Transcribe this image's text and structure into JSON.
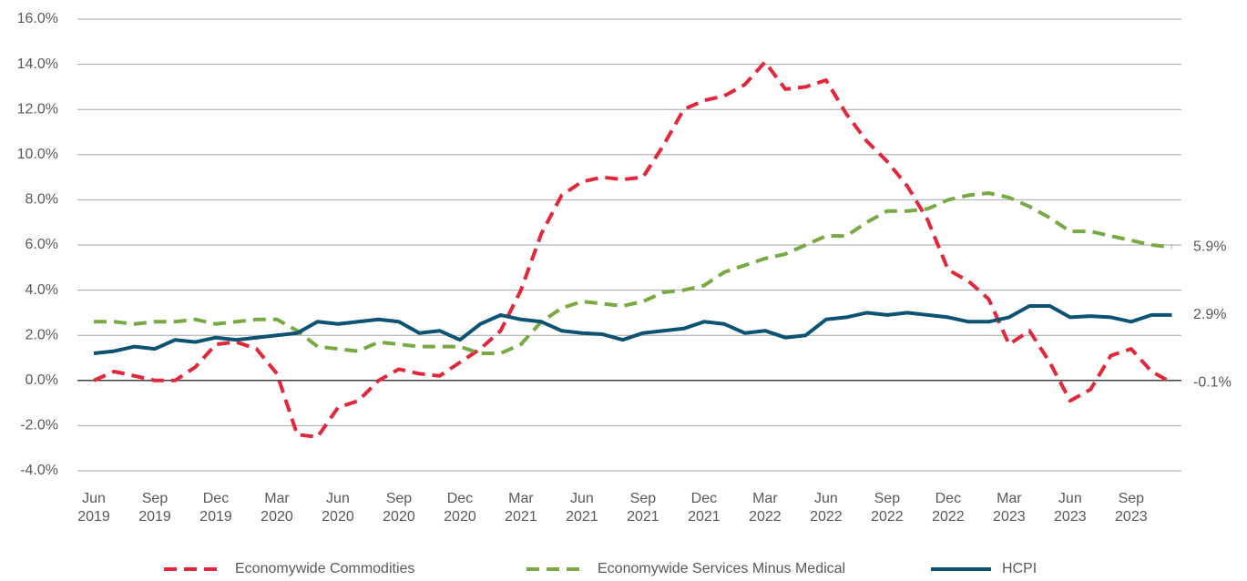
{
  "chart_data": {
    "type": "line",
    "categories": [
      "Jun 2019",
      null,
      null,
      "Sep 2019",
      null,
      null,
      "Dec 2019",
      null,
      null,
      "Mar 2020",
      null,
      null,
      "Jun 2020",
      null,
      null,
      "Sep 2020",
      null,
      null,
      "Dec 2020",
      null,
      null,
      "Mar 2021",
      null,
      null,
      "Jun 2021",
      null,
      null,
      "Sep 2021",
      null,
      null,
      "Dec 2021",
      null,
      null,
      "Mar 2022",
      null,
      null,
      "Jun 2022",
      null,
      null,
      "Sep 2022",
      null,
      null,
      "Dec 2022",
      null,
      null,
      "Mar 2023",
      null,
      null,
      "Jun 2023",
      null,
      null,
      "Sep 2023",
      null,
      null
    ],
    "series": [
      {
        "name": "Economywide Commodities",
        "color": "#e3263a",
        "style": "dashed",
        "end_label": "-0.1%",
        "values": [
          0.0,
          0.4,
          0.2,
          0.0,
          0.0,
          0.6,
          1.6,
          1.7,
          1.4,
          0.3,
          -2.4,
          -2.5,
          -1.2,
          -0.9,
          0.0,
          0.5,
          0.3,
          0.2,
          0.8,
          1.4,
          2.2,
          4.0,
          6.5,
          8.2,
          8.8,
          9.0,
          8.9,
          9.0,
          10.4,
          12.0,
          12.4,
          12.6,
          13.1,
          14.1,
          12.9,
          13.0,
          13.3,
          11.8,
          10.6,
          9.7,
          8.6,
          7.1,
          4.9,
          4.4,
          3.6,
          1.6,
          2.2,
          0.8,
          -0.9,
          -0.4,
          1.1,
          1.4,
          0.4,
          -0.1
        ]
      },
      {
        "name": "Economywide Services Minus Medical",
        "color": "#78a942",
        "style": "dashed",
        "end_label": "5.9%",
        "values": [
          2.6,
          2.6,
          2.5,
          2.6,
          2.6,
          2.7,
          2.5,
          2.6,
          2.7,
          2.7,
          2.2,
          1.5,
          1.4,
          1.3,
          1.7,
          1.6,
          1.5,
          1.5,
          1.5,
          1.2,
          1.2,
          1.6,
          2.6,
          3.2,
          3.5,
          3.4,
          3.3,
          3.5,
          3.9,
          4.0,
          4.2,
          4.8,
          5.1,
          5.4,
          5.6,
          6.0,
          6.4,
          6.4,
          7.0,
          7.5,
          7.5,
          7.6,
          8.0,
          8.2,
          8.3,
          8.1,
          7.7,
          7.2,
          6.6,
          6.6,
          6.4,
          6.2,
          6.0,
          5.9
        ]
      },
      {
        "name": "HCPI",
        "color": "#0c5273",
        "style": "solid",
        "end_label": "2.9%",
        "values": [
          1.2,
          1.3,
          1.5,
          1.4,
          1.8,
          1.7,
          1.9,
          1.8,
          1.9,
          2.0,
          2.1,
          2.6,
          2.5,
          2.6,
          2.7,
          2.6,
          2.1,
          2.2,
          1.8,
          2.5,
          2.9,
          2.7,
          2.6,
          2.2,
          2.1,
          2.05,
          1.8,
          2.1,
          2.2,
          2.3,
          2.6,
          2.5,
          2.1,
          2.2,
          1.9,
          2.0,
          2.7,
          2.8,
          3.0,
          2.9,
          3.0,
          2.9,
          2.8,
          2.6,
          2.6,
          2.8,
          3.3,
          3.3,
          2.8,
          2.85,
          2.8,
          2.6,
          2.9,
          2.9
        ]
      }
    ],
    "ylim": [
      -4,
      16
    ],
    "yticks": [
      {
        "value": -4,
        "label": "-4.0%"
      },
      {
        "value": -2,
        "label": "-2.0%"
      },
      {
        "value": 0,
        "label": "0.0%"
      },
      {
        "value": 2,
        "label": "2.0%"
      },
      {
        "value": 4,
        "label": "4.0%"
      },
      {
        "value": 6,
        "label": "6.0%"
      },
      {
        "value": 8,
        "label": "8.0%"
      },
      {
        "value": 10,
        "label": "10.0%"
      },
      {
        "value": 12,
        "label": "12.0%"
      },
      {
        "value": 14,
        "label": "14.0%"
      },
      {
        "value": 16,
        "label": "16.0%"
      }
    ],
    "grid": true,
    "legend": "bottom"
  }
}
